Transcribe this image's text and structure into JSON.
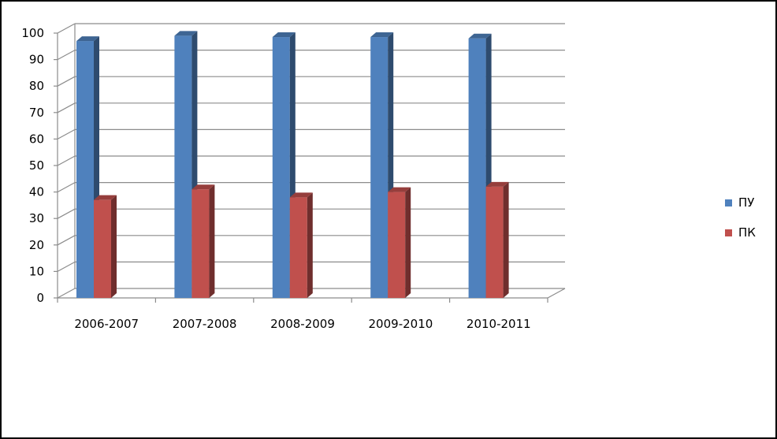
{
  "chart_data": {
    "type": "bar",
    "categories": [
      "2006-2007",
      "2007-2008",
      "2008-2009",
      "2009-2010",
      "2010-2011"
    ],
    "series": [
      {
        "name": "ПУ",
        "values": [
          97,
          99,
          98.5,
          98.5,
          98
        ],
        "color": "#4F81BD"
      },
      {
        "name": "ПК",
        "values": [
          37,
          41,
          38,
          40,
          42
        ],
        "color": "#C0504D"
      }
    ],
    "ylim": [
      0,
      100
    ],
    "yticks": [
      "0",
      "10",
      "20",
      "30",
      "40",
      "50",
      "60",
      "70",
      "80",
      "90",
      "100"
    ],
    "grid": true,
    "three_d": true,
    "legend_position": "right"
  },
  "legend": {
    "items": [
      {
        "label": "ПУ",
        "color": "#4F81BD"
      },
      {
        "label": "ПК",
        "color": "#C0504D"
      }
    ]
  }
}
